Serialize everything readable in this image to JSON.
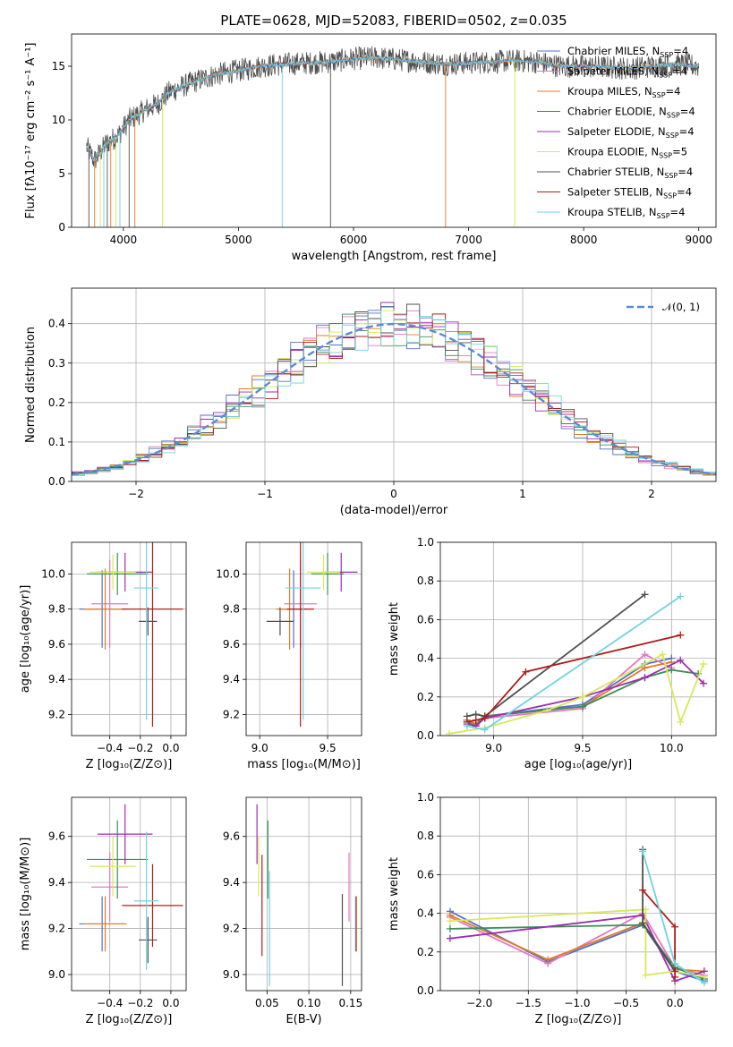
{
  "colors": {
    "Chabrier MILES": "#5470c6",
    "Salpeter MILES": "#e377c2",
    "Kroupa MILES": "#e07b24",
    "Chabrier ELODIE": "#3a8f57",
    "Salpeter ELODIE": "#9b2fae",
    "Kroupa ELODIE": "#d7e85a",
    "Chabrier STELIB": "#505050",
    "Salpeter STELIB": "#b01c1c",
    "Kroupa STELIB": "#6ed3e0",
    "normal": "#5b8ad6"
  },
  "chart_data": [
    {
      "id": "spectrum",
      "type": "line",
      "title": "PLATE=0628, MJD=52083, FIBERID=0502, z=0.035",
      "xlabel": "wavelength [Angstrom, rest frame]",
      "ylabel": "Flux [fλ10⁻¹⁷ erg cm⁻² s⁻¹ A⁻¹]",
      "xlim": [
        3550,
        9150
      ],
      "ylim": [
        0,
        18
      ],
      "xticks": [
        4000,
        5000,
        6000,
        7000,
        8000,
        9000
      ],
      "yticks": [
        0,
        5,
        10,
        15
      ],
      "grid": false,
      "legend_position": "right",
      "legend": [
        {
          "name": "Chabrier MILES",
          "suffix": "4"
        },
        {
          "name": "Salpeter MILES",
          "suffix": "4"
        },
        {
          "name": "Kroupa MILES",
          "suffix": "4"
        },
        {
          "name": "Chabrier ELODIE",
          "suffix": "4"
        },
        {
          "name": "Salpeter ELODIE",
          "suffix": "4"
        },
        {
          "name": "Kroupa ELODIE",
          "suffix": "5"
        },
        {
          "name": "Chabrier STELIB",
          "suffix": "4"
        },
        {
          "name": "Salpeter STELIB",
          "suffix": "4"
        },
        {
          "name": "Kroupa STELIB",
          "suffix": "4"
        }
      ],
      "legend_label_pattern": "N",
      "legend_label_sub": "SSP",
      "continuum": [
        [
          3680,
          7.5
        ],
        [
          3750,
          6.2
        ],
        [
          3850,
          7.8
        ],
        [
          3950,
          8.5
        ],
        [
          4050,
          10.0
        ],
        [
          4200,
          11.0
        ],
        [
          4300,
          11.5
        ],
        [
          4400,
          12.6
        ],
        [
          4600,
          13.5
        ],
        [
          4800,
          14.2
        ],
        [
          5000,
          14.6
        ],
        [
          5200,
          15.0
        ],
        [
          5400,
          15.2
        ],
        [
          5600,
          15.3
        ],
        [
          5800,
          15.4
        ],
        [
          6000,
          15.7
        ],
        [
          6200,
          15.8
        ],
        [
          6400,
          15.6
        ],
        [
          6600,
          15.4
        ],
        [
          6800,
          15.2
        ],
        [
          7000,
          15.3
        ],
        [
          7200,
          15.4
        ],
        [
          7400,
          15.5
        ],
        [
          7600,
          15.4
        ],
        [
          7800,
          15.0
        ],
        [
          8000,
          15.0
        ],
        [
          8200,
          14.9
        ],
        [
          8400,
          14.8
        ],
        [
          8600,
          15.0
        ],
        [
          8800,
          15.2
        ],
        [
          9000,
          15.0
        ]
      ],
      "absorption_lines": [
        3700,
        3750,
        3800,
        3830,
        3860,
        3890,
        3935,
        3970,
        4050,
        4100,
        4340,
        5380,
        5800,
        6800,
        7400
      ]
    },
    {
      "id": "residuals",
      "type": "histogram",
      "xlabel": "(data-model)/error",
      "ylabel": "Normed distribution",
      "xlim": [
        -2.5,
        2.5
      ],
      "ylim": [
        0,
        0.49
      ],
      "xticks": [
        -2,
        -1,
        0,
        1,
        2
      ],
      "yticks": [
        0.0,
        0.1,
        0.2,
        0.3,
        0.4
      ],
      "grid": true,
      "legend_position": "top-right",
      "normal_label": "𝒩(0, 1)",
      "bin_width": 0.1
    },
    {
      "id": "Z-age",
      "type": "errorbar",
      "xlabel": "Z [log₁₀(Z/Z⊙)]",
      "ylabel": "age  [log₁₀(age/yr)]",
      "xlim": [
        -0.65,
        0.1
      ],
      "ylim": [
        9.08,
        10.18
      ],
      "xticks": [
        -0.4,
        -0.2,
        0.0
      ],
      "yticks": [
        9.2,
        9.4,
        9.6,
        9.8,
        10.0
      ],
      "grid": true,
      "points": [
        {
          "model": "Chabrier MILES",
          "x": -0.45,
          "xerr": 0.15,
          "y": 9.8,
          "yerr": 0.22
        },
        {
          "model": "Salpeter MILES",
          "x": -0.4,
          "xerr": 0.12,
          "y": 9.83,
          "yerr": 0.25
        },
        {
          "model": "Kroupa MILES",
          "x": -0.43,
          "xerr": 0.14,
          "y": 9.8,
          "yerr": 0.23
        },
        {
          "model": "Chabrier ELODIE",
          "x": -0.35,
          "xerr": 0.2,
          "y": 10.0,
          "yerr": 0.12
        },
        {
          "model": "Salpeter ELODIE",
          "x": -0.3,
          "xerr": 0.18,
          "y": 10.01,
          "yerr": 0.11
        },
        {
          "model": "Kroupa ELODIE",
          "x": -0.38,
          "xerr": 0.15,
          "y": 10.01,
          "yerr": 0.1
        },
        {
          "model": "Chabrier STELIB",
          "x": -0.15,
          "xerr": 0.06,
          "y": 9.73,
          "yerr": 0.08
        },
        {
          "model": "Salpeter STELIB",
          "x": -0.12,
          "xerr": 0.2,
          "y": 9.8,
          "yerr": 0.67
        },
        {
          "model": "Kroupa STELIB",
          "x": -0.16,
          "xerr": 0.08,
          "y": 9.92,
          "yerr": 0.75
        }
      ]
    },
    {
      "id": "mass-age",
      "type": "errorbar",
      "xlabel": "mass [log₁₀(M/M⊙)]",
      "ylabel": "",
      "xlim": [
        8.9,
        9.75
      ],
      "ylim": [
        9.08,
        10.18
      ],
      "xticks": [
        9.0,
        9.5
      ],
      "yticks": [
        9.2,
        9.4,
        9.6,
        9.8,
        10.0
      ],
      "grid": true,
      "points": [
        {
          "model": "Chabrier MILES",
          "x": 9.25,
          "xerr": 0.1,
          "y": 9.8,
          "yerr": 0.22
        },
        {
          "model": "Salpeter MILES",
          "x": 9.3,
          "xerr": 0.12,
          "y": 9.83,
          "yerr": 0.25
        },
        {
          "model": "Kroupa MILES",
          "x": 9.22,
          "xerr": 0.1,
          "y": 9.8,
          "yerr": 0.23
        },
        {
          "model": "Chabrier ELODIE",
          "x": 9.5,
          "xerr": 0.12,
          "y": 10.0,
          "yerr": 0.12
        },
        {
          "model": "Salpeter ELODIE",
          "x": 9.6,
          "xerr": 0.12,
          "y": 10.01,
          "yerr": 0.11
        },
        {
          "model": "Kroupa ELODIE",
          "x": 9.47,
          "xerr": 0.12,
          "y": 10.01,
          "yerr": 0.1
        },
        {
          "model": "Chabrier STELIB",
          "x": 9.15,
          "xerr": 0.1,
          "y": 9.73,
          "yerr": 0.08
        },
        {
          "model": "Salpeter STELIB",
          "x": 9.3,
          "xerr": 0.1,
          "y": 9.8,
          "yerr": 0.67
        },
        {
          "model": "Kroupa STELIB",
          "x": 9.32,
          "xerr": 0.13,
          "y": 9.92,
          "yerr": 0.75
        }
      ]
    },
    {
      "id": "age-massweight",
      "type": "line",
      "xlabel": "age  [log₁₀(age/yr)]",
      "ylabel": "mass weight",
      "xlim": [
        8.7,
        10.25
      ],
      "ylim": [
        0,
        1.0
      ],
      "xticks": [
        9.0,
        9.5,
        10.0
      ],
      "yticks": [
        0.0,
        0.2,
        0.4,
        0.6,
        0.8,
        1.0
      ],
      "grid": true,
      "series": [
        {
          "model": "Chabrier MILES",
          "x": [
            8.85,
            8.9,
            8.95,
            9.5,
            9.85,
            10.0
          ],
          "y": [
            0.08,
            0.06,
            0.1,
            0.16,
            0.37,
            0.4
          ]
        },
        {
          "model": "Salpeter MILES",
          "x": [
            8.85,
            8.9,
            8.95,
            9.5,
            9.85,
            10.0
          ],
          "y": [
            0.07,
            0.05,
            0.09,
            0.14,
            0.42,
            0.35
          ]
        },
        {
          "model": "Kroupa MILES",
          "x": [
            8.85,
            8.9,
            8.95,
            9.5,
            9.85,
            10.0
          ],
          "y": [
            0.08,
            0.06,
            0.1,
            0.15,
            0.35,
            0.38
          ]
        },
        {
          "model": "Chabrier ELODIE",
          "x": [
            8.85,
            8.9,
            8.95,
            9.5,
            9.85,
            10.0,
            10.15
          ],
          "y": [
            0.07,
            0.05,
            0.1,
            0.15,
            0.3,
            0.34,
            0.32
          ]
        },
        {
          "model": "Salpeter ELODIE",
          "x": [
            8.85,
            8.9,
            8.95,
            9.5,
            9.85,
            10.05,
            10.18
          ],
          "y": [
            0.06,
            0.05,
            0.09,
            0.2,
            0.3,
            0.39,
            0.27
          ]
        },
        {
          "model": "Kroupa ELODIE",
          "x": [
            8.75,
            8.95,
            9.3,
            9.5,
            9.95,
            10.05,
            10.18
          ],
          "y": [
            0.01,
            0.04,
            0.13,
            0.2,
            0.42,
            0.07,
            0.37
          ]
        },
        {
          "model": "Chabrier STELIB",
          "x": [
            8.85,
            8.9,
            8.95,
            9.85
          ],
          "y": [
            0.1,
            0.11,
            0.1,
            0.73
          ]
        },
        {
          "model": "Salpeter STELIB",
          "x": [
            8.85,
            8.9,
            8.95,
            9.18,
            10.05
          ],
          "y": [
            0.07,
            0.08,
            0.09,
            0.33,
            0.52
          ]
        },
        {
          "model": "Kroupa STELIB",
          "x": [
            8.85,
            8.95,
            10.05
          ],
          "y": [
            0.05,
            0.03,
            0.72
          ]
        }
      ]
    },
    {
      "id": "Z-mass",
      "type": "errorbar",
      "xlabel": "Z [log₁₀(Z/Z⊙)]",
      "ylabel": "mass [log₁₀(M/M⊙)]",
      "xlim": [
        -0.65,
        0.1
      ],
      "ylim": [
        8.93,
        9.77
      ],
      "xticks": [
        -0.4,
        -0.2,
        0.0
      ],
      "yticks": [
        9.0,
        9.2,
        9.4,
        9.6
      ],
      "grid": true,
      "points": [
        {
          "model": "Chabrier MILES",
          "x": -0.45,
          "xerr": 0.15,
          "y": 9.22,
          "yerr": 0.12
        },
        {
          "model": "Salpeter MILES",
          "x": -0.4,
          "xerr": 0.12,
          "y": 9.38,
          "yerr": 0.15
        },
        {
          "model": "Kroupa MILES",
          "x": -0.43,
          "xerr": 0.14,
          "y": 9.22,
          "yerr": 0.12
        },
        {
          "model": "Chabrier ELODIE",
          "x": -0.35,
          "xerr": 0.2,
          "y": 9.5,
          "yerr": 0.17
        },
        {
          "model": "Salpeter ELODIE",
          "x": -0.3,
          "xerr": 0.18,
          "y": 9.61,
          "yerr": 0.13
        },
        {
          "model": "Kroupa ELODIE",
          "x": -0.38,
          "xerr": 0.15,
          "y": 9.47,
          "yerr": 0.13
        },
        {
          "model": "Chabrier STELIB",
          "x": -0.15,
          "xerr": 0.06,
          "y": 9.15,
          "yerr": 0.1
        },
        {
          "model": "Salpeter STELIB",
          "x": -0.12,
          "xerr": 0.2,
          "y": 9.3,
          "yerr": 0.18
        },
        {
          "model": "Kroupa STELIB",
          "x": -0.16,
          "xerr": 0.08,
          "y": 9.32,
          "yerr": 0.3
        }
      ]
    },
    {
      "id": "ebv-mass",
      "type": "errorbar",
      "xlabel": "E(B-V)",
      "ylabel": "",
      "xlim": [
        0.025,
        0.163
      ],
      "ylim": [
        8.93,
        9.77
      ],
      "xticks": [
        0.05,
        0.1,
        0.15
      ],
      "yticks": [
        9.0,
        9.2,
        9.4,
        9.6
      ],
      "grid": true,
      "points": [
        {
          "model": "Chabrier MILES",
          "x": 0.156,
          "xerr": 0,
          "y": 9.22,
          "yerr": 0.12
        },
        {
          "model": "Salpeter MILES",
          "x": 0.148,
          "xerr": 0,
          "y": 9.38,
          "yerr": 0.15
        },
        {
          "model": "Kroupa MILES",
          "x": 0.157,
          "xerr": 0,
          "y": 9.22,
          "yerr": 0.12
        },
        {
          "model": "Chabrier ELODIE",
          "x": 0.051,
          "xerr": 0,
          "y": 9.5,
          "yerr": 0.17
        },
        {
          "model": "Salpeter ELODIE",
          "x": 0.038,
          "xerr": 0,
          "y": 9.61,
          "yerr": 0.13
        },
        {
          "model": "Kroupa ELODIE",
          "x": 0.04,
          "xerr": 0,
          "y": 9.47,
          "yerr": 0.13
        },
        {
          "model": "Chabrier STELIB",
          "x": 0.14,
          "xerr": 0,
          "y": 9.15,
          "yerr": 0.2
        },
        {
          "model": "Salpeter STELIB",
          "x": 0.044,
          "xerr": 0,
          "y": 9.3,
          "yerr": 0.22
        },
        {
          "model": "Kroupa STELIB",
          "x": 0.053,
          "xerr": 0,
          "y": 9.2,
          "yerr": 0.25
        }
      ]
    },
    {
      "id": "Z-massweight",
      "type": "line",
      "xlabel": "Z [log₁₀(Z/Z⊙)]",
      "ylabel": "mass weight",
      "xlim": [
        -2.4,
        0.42
      ],
      "ylim": [
        0,
        1.0
      ],
      "xticks": [
        -2.0,
        -1.5,
        -1.0,
        -0.5,
        0.0
      ],
      "yticks": [
        0.0,
        0.2,
        0.4,
        0.6,
        0.8,
        1.0
      ],
      "grid": true,
      "series": [
        {
          "model": "Chabrier MILES",
          "x": [
            -2.3,
            -1.3,
            -0.33,
            0.0,
            0.3
          ],
          "y": [
            0.41,
            0.15,
            0.34,
            0.1,
            0.05
          ]
        },
        {
          "model": "Salpeter MILES",
          "x": [
            -2.3,
            -1.3,
            -0.33,
            0.0,
            0.3
          ],
          "y": [
            0.38,
            0.14,
            0.4,
            0.12,
            0.08
          ]
        },
        {
          "model": "Kroupa MILES",
          "x": [
            -2.3,
            -1.3,
            -0.33,
            0.0,
            0.3
          ],
          "y": [
            0.39,
            0.16,
            0.35,
            0.11,
            0.1
          ]
        },
        {
          "model": "Chabrier ELODIE",
          "x": [
            -2.3,
            -0.33,
            0.0,
            0.3
          ],
          "y": [
            0.32,
            0.34,
            0.12,
            0.06
          ]
        },
        {
          "model": "Salpeter ELODIE",
          "x": [
            -2.3,
            -0.33,
            0.0,
            0.3
          ],
          "y": [
            0.27,
            0.39,
            0.05,
            0.1
          ]
        },
        {
          "model": "Kroupa ELODIE",
          "x": [
            -2.3,
            -0.3,
            -0.3,
            0.0,
            0.3
          ],
          "y": [
            0.36,
            0.42,
            0.08,
            0.1,
            0.07
          ]
        },
        {
          "model": "Chabrier STELIB",
          "x": [
            -0.33,
            -0.33,
            0.0
          ],
          "y": [
            0.73,
            0.35,
            0.1
          ]
        },
        {
          "model": "Salpeter STELIB",
          "x": [
            -0.33,
            0.0,
            0.0
          ],
          "y": [
            0.52,
            0.33,
            0.07
          ]
        },
        {
          "model": "Kroupa STELIB",
          "x": [
            -0.33,
            0.0,
            0.3
          ],
          "y": [
            0.72,
            0.14,
            0.04
          ]
        }
      ]
    }
  ]
}
